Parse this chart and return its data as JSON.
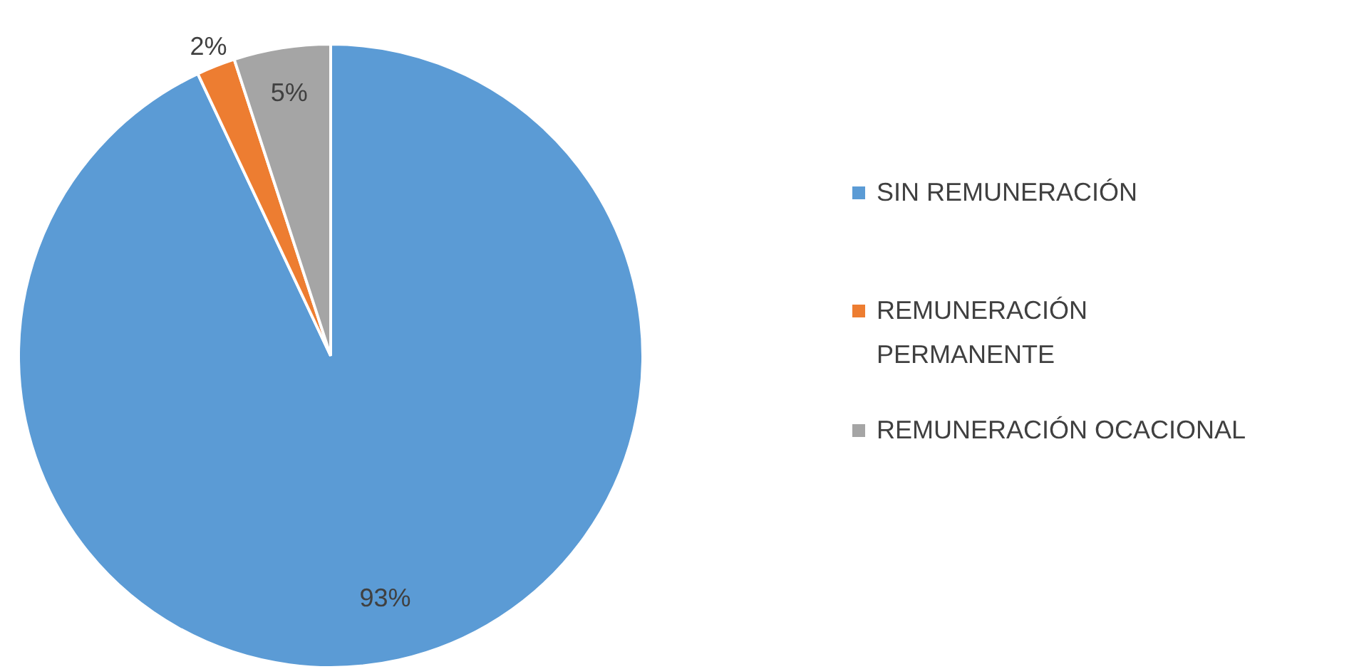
{
  "chart_data": {
    "type": "pie",
    "categories": [
      "SIN REMUNERACIÓN",
      "REMUNERACIÓN PERMANENTE",
      "REMUNERACIÓN OCACIONAL"
    ],
    "values": [
      93,
      2,
      5
    ],
    "colors": [
      "#5b9bd5",
      "#ed7d31",
      "#a5a5a5"
    ],
    "value_labels": [
      "93%",
      "2%",
      "5%"
    ],
    "legend": "right"
  }
}
